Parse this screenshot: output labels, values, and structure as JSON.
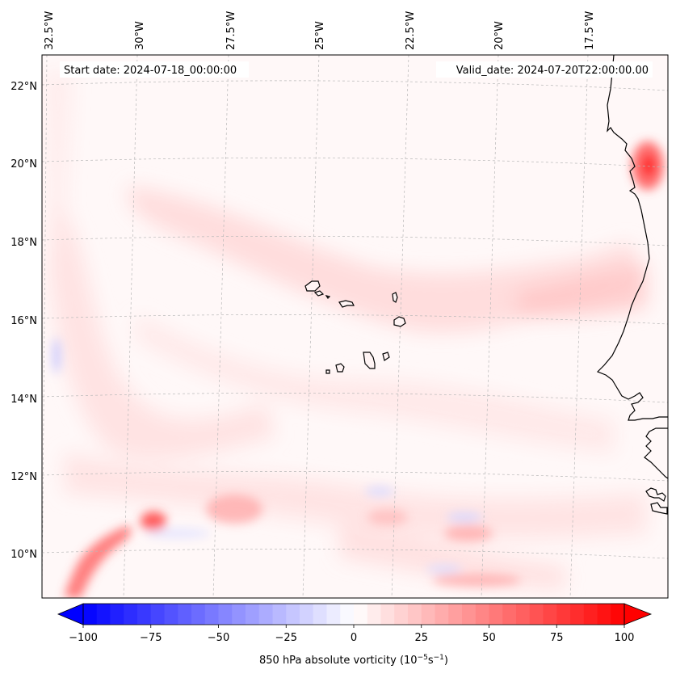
{
  "map": {
    "start_date": "Start date: 2024-07-18_00:00:00",
    "valid_date": "Valid_date: 2024-07-20T22:00:00.00",
    "lon_labels": [
      "32.5°W",
      "30°W",
      "27.5°W",
      "25°W",
      "22.5°W",
      "20°W",
      "17.5°W"
    ],
    "lat_labels": [
      "22°N",
      "20°N",
      "18°N",
      "16°N",
      "14°N",
      "12°N",
      "10°N"
    ],
    "field": "850 hPa absolute vorticity"
  },
  "colorbar": {
    "ticks": [
      "−100",
      "−75",
      "−50",
      "−25",
      "0",
      "25",
      "50",
      "75",
      "100"
    ],
    "min": -100,
    "max": 100,
    "step": 5,
    "label_main": "850 hPa absolute vorticity (10",
    "label_exp1": "−5",
    "label_mid": "s",
    "label_exp2": "−1",
    "label_end": ")",
    "negative_color": "#0000ff",
    "positive_color": "#ff0000"
  },
  "colors": {
    "coastline": "#000000",
    "gridline": "#b0b0b0",
    "background": "#fff8f8"
  }
}
